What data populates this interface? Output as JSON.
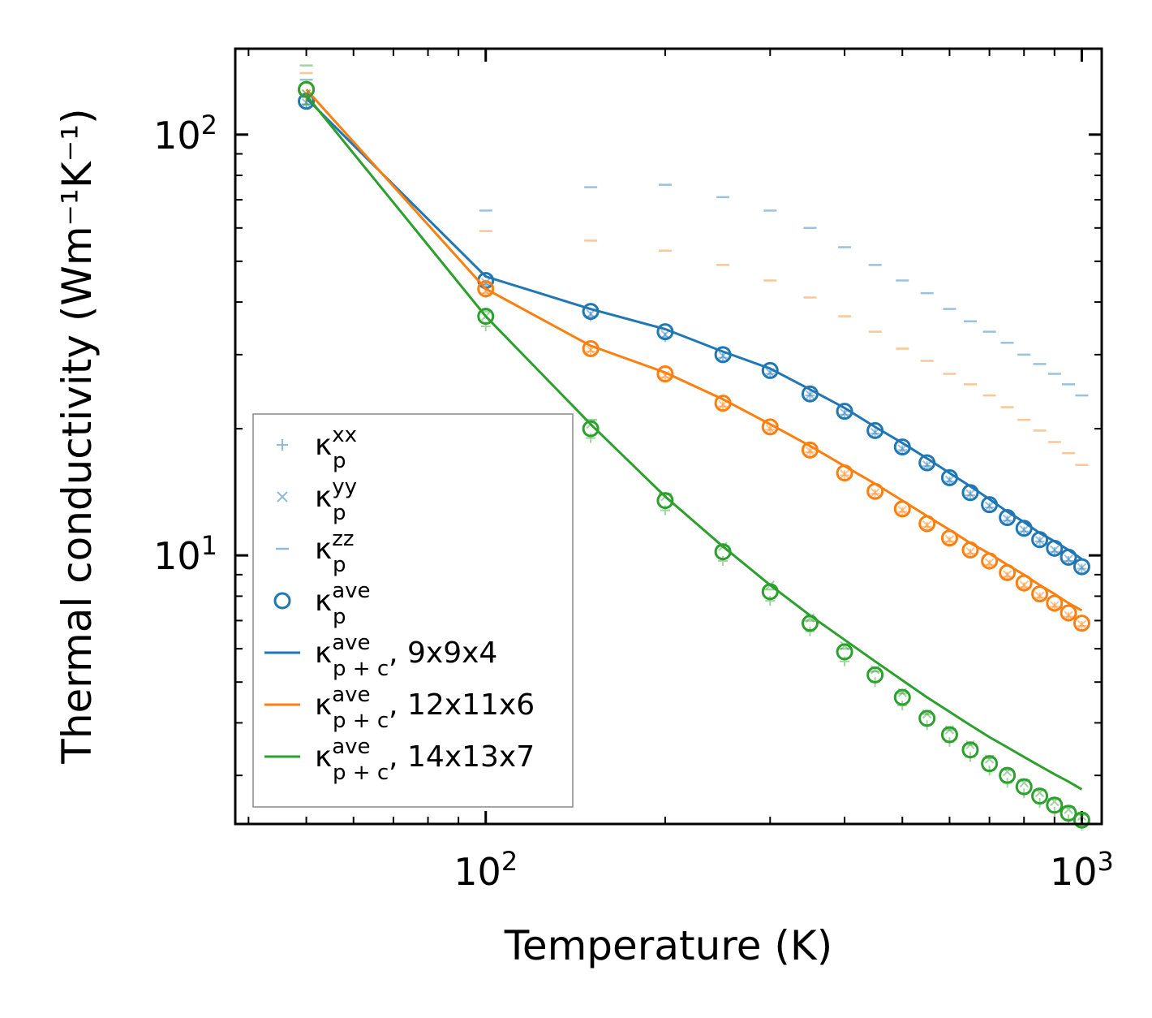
{
  "chart_data": {
    "type": "line",
    "scale": {
      "x": "log",
      "y": "log"
    },
    "xlabel": "Temperature (K)",
    "ylabel": "Thermal conductivity (Wm⁻¹K⁻¹)",
    "xlim": [
      38,
      1080
    ],
    "ylim": [
      2.3,
      160
    ],
    "x_major_ticks": [
      {
        "value": 100,
        "base": "10",
        "exp": "2"
      },
      {
        "value": 1000,
        "base": "10",
        "exp": "3"
      }
    ],
    "y_major_ticks": [
      {
        "value": 10,
        "base": "10",
        "exp": "1"
      },
      {
        "value": 100,
        "base": "10",
        "exp": "2"
      }
    ],
    "temperatures": [
      50,
      100,
      150,
      200,
      250,
      300,
      350,
      400,
      450,
      500,
      550,
      600,
      650,
      700,
      750,
      800,
      850,
      900,
      950,
      1000
    ],
    "series": [
      {
        "name": "9x9x4",
        "color": "#1f77b4",
        "kp_ave": [
          120,
          45,
          38,
          34,
          30,
          27.5,
          24.2,
          22,
          19.8,
          18.1,
          16.6,
          15.3,
          14.1,
          13.2,
          12.3,
          11.6,
          10.9,
          10.4,
          9.9,
          9.4
        ],
        "kp_xx": [
          118,
          44,
          37,
          33,
          29.5,
          27,
          24,
          21.6,
          19.5,
          17.8,
          16.3,
          15,
          13.9,
          13,
          12.1,
          11.4,
          10.8,
          10.2,
          9.7,
          9.3
        ],
        "kp_yy": [
          119,
          44.5,
          37.5,
          33.5,
          29.8,
          27.2,
          24.1,
          21.8,
          19.6,
          17.9,
          16.4,
          15.1,
          14,
          13.1,
          12.2,
          11.5,
          10.85,
          10.3,
          9.8,
          9.35
        ],
        "kp_zz": [
          135,
          66,
          75,
          76,
          71,
          66,
          60,
          54,
          49,
          45,
          42,
          38.5,
          36,
          34,
          32,
          30,
          28.5,
          27,
          25.5,
          24
        ],
        "kpc_ave": [
          122,
          46,
          38.5,
          34.5,
          30.5,
          27.8,
          24.8,
          22.4,
          20.2,
          18.5,
          17,
          15.7,
          14.6,
          13.6,
          12.7,
          12,
          11.3,
          10.8,
          10.3,
          9.8
        ]
      },
      {
        "name": "12x11x6",
        "color": "#ff7f0e",
        "kp_ave": [
          128,
          43,
          31,
          27,
          23,
          20.2,
          17.8,
          15.7,
          14.2,
          12.9,
          11.9,
          11,
          10.3,
          9.7,
          9.1,
          8.6,
          8.1,
          7.7,
          7.3,
          6.9
        ],
        "kp_xx": [
          123,
          42,
          30.5,
          26.5,
          22.6,
          19.9,
          17.6,
          15.5,
          14,
          12.7,
          11.7,
          10.8,
          10.1,
          9.5,
          8.9,
          8.4,
          7.95,
          7.55,
          7.15,
          6.8
        ],
        "kp_yy": [
          125,
          42.5,
          30.8,
          26.8,
          22.8,
          20,
          17.7,
          15.6,
          14.1,
          12.8,
          11.8,
          10.9,
          10.2,
          9.6,
          9,
          8.5,
          8,
          7.6,
          7.2,
          6.85
        ],
        "kp_zz": [
          140,
          59,
          56,
          53,
          49,
          45,
          41,
          37,
          34,
          31,
          29,
          27,
          25.5,
          24,
          22.5,
          21,
          19.8,
          18.6,
          17.5,
          16.4
        ],
        "kpc_ave": [
          128,
          43,
          31.5,
          27.2,
          23.5,
          20.5,
          18.2,
          16.3,
          14.8,
          13.5,
          12.4,
          11.5,
          10.7,
          10.1,
          9.5,
          9,
          8.5,
          8.1,
          7.7,
          7.4
        ]
      },
      {
        "name": "14x13x7",
        "color": "#2ca02c",
        "kp_ave": [
          128,
          37,
          20,
          13.5,
          10.2,
          8.2,
          6.9,
          5.9,
          5.2,
          4.6,
          4.1,
          3.75,
          3.45,
          3.2,
          3,
          2.82,
          2.68,
          2.55,
          2.44,
          2.35
        ],
        "kp_xx": [
          118,
          35,
          19,
          12.8,
          9.7,
          7.8,
          6.6,
          5.6,
          5,
          4.4,
          3.95,
          3.6,
          3.32,
          3.08,
          2.88,
          2.72,
          2.58,
          2.46,
          2.36,
          2.28
        ],
        "kp_yy": [
          125,
          37,
          20.5,
          13.8,
          10.5,
          8.5,
          7.1,
          6.1,
          5.35,
          4.72,
          4.2,
          3.85,
          3.55,
          3.28,
          3.06,
          2.88,
          2.73,
          2.6,
          2.49,
          2.4
        ],
        "kp_zz": [
          146,
          38,
          21,
          14,
          10.5,
          8.3,
          7,
          6,
          5.3,
          4.7,
          4.2,
          3.85,
          3.55,
          3.3,
          3.1,
          2.92,
          2.77,
          2.64,
          2.52,
          2.42
        ],
        "kpc_ave": [
          124,
          37,
          20.5,
          13.8,
          10.5,
          8.5,
          7.2,
          6.3,
          5.6,
          5.05,
          4.6,
          4.25,
          3.95,
          3.7,
          3.5,
          3.32,
          3.16,
          3.02,
          2.9,
          2.78
        ]
      }
    ],
    "legend": {
      "position": "lower-left",
      "entries": [
        {
          "marker": "plus",
          "main": "κ",
          "sup": "xx",
          "sub": "p",
          "suffix": ""
        },
        {
          "marker": "x",
          "main": "κ",
          "sup": "yy",
          "sub": "p",
          "suffix": ""
        },
        {
          "marker": "dash",
          "main": "κ",
          "sup": "zz",
          "sub": "p",
          "suffix": ""
        },
        {
          "marker": "circle",
          "main": "κ",
          "sup": "ave",
          "sub": "p",
          "suffix": ""
        },
        {
          "marker": "line",
          "series": 0,
          "main": "κ",
          "sup": "ave",
          "sub": "p + c",
          "suffix": ", 9x9x4"
        },
        {
          "marker": "line",
          "series": 1,
          "main": "κ",
          "sup": "ave",
          "sub": "p + c",
          "suffix": ", 12x11x6"
        },
        {
          "marker": "line",
          "series": 2,
          "main": "κ",
          "sup": "ave",
          "sub": "p + c",
          "suffix": ", 14x13x7"
        }
      ]
    }
  }
}
